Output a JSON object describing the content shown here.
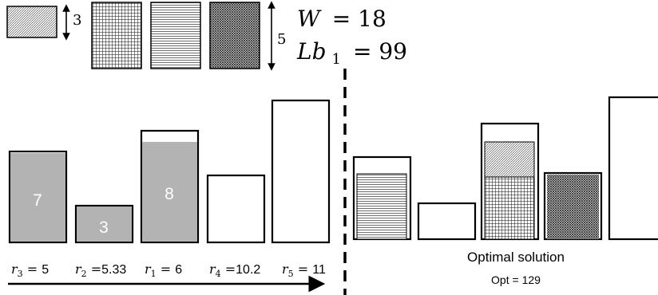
{
  "legend": {
    "small_height_label": "3",
    "large_height_label": "5",
    "w_lhs": "W",
    "w_rhs": "= 18",
    "lb_lhs": "Lb",
    "lb_sub": "1",
    "lb_rhs": "= 99"
  },
  "left_bins": [
    {
      "fill_label": "7"
    },
    {
      "fill_label": "3"
    },
    {
      "fill_label": "8"
    }
  ],
  "ratios": [
    {
      "var": "r",
      "sub": "3",
      "eq": " = ",
      "value": "5"
    },
    {
      "var": "r",
      "sub": "2",
      "eq": " =",
      "value": "5.33"
    },
    {
      "var": "r",
      "sub": "1",
      "eq": " = ",
      "value": "6"
    },
    {
      "var": "r",
      "sub": "4",
      "eq": " =",
      "value": "10.2"
    },
    {
      "var": "r",
      "sub": "5",
      "eq": " = ",
      "value": "11"
    }
  ],
  "solution": {
    "caption": "Optimal solution",
    "opt_text": "Opt = 129"
  },
  "colors": {
    "stroke": "#000000",
    "fill_gray": "#b3b3b3",
    "label_white": "#ffffff"
  }
}
